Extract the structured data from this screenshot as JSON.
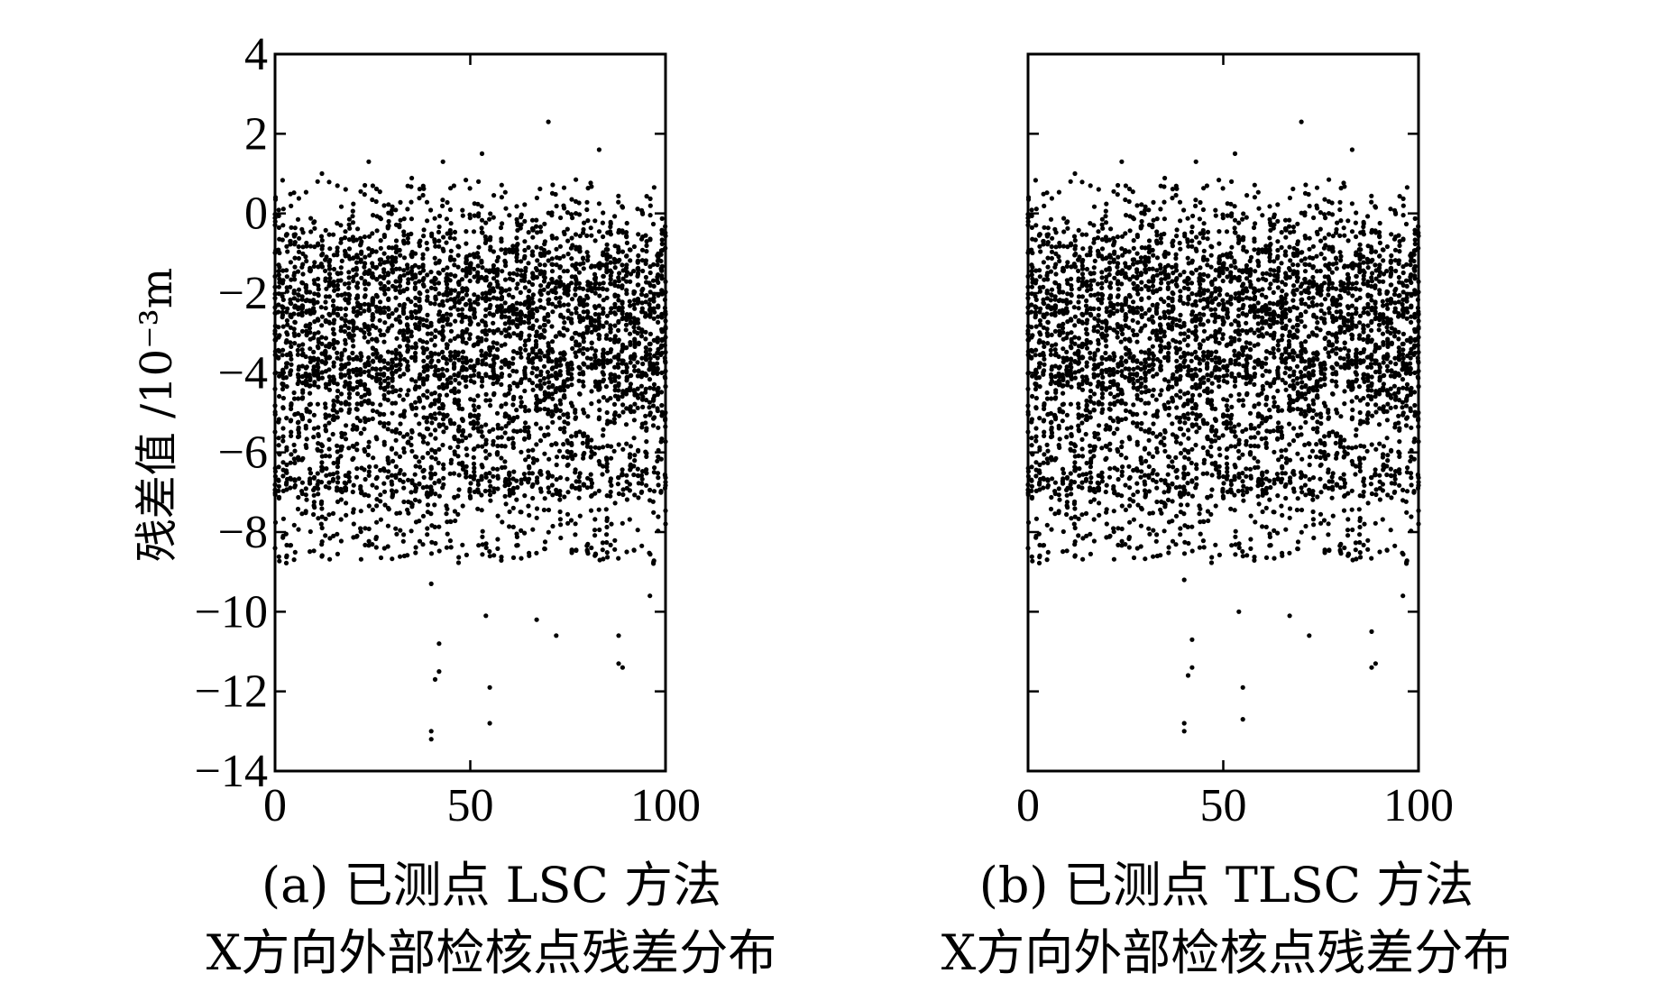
{
  "chart_data": [
    {
      "type": "scatter",
      "id": "a",
      "caption_line1": "(a) 已测点 LSC 方法",
      "caption_line2": "X方向外部检核点残差分布",
      "ylabel": "残差值 /10⁻³m",
      "xlim": [
        0,
        100
      ],
      "ylim": [
        -14,
        4
      ],
      "xticks": [
        "0",
        "50",
        "100"
      ],
      "yticks": [
        "4",
        "2",
        "0",
        "−2",
        "−4",
        "−6",
        "−8",
        "−10",
        "−12",
        "−14"
      ],
      "show_ytick_labels": true,
      "n_columns": 101,
      "points_per_column": 40,
      "seed": 7,
      "extreme_points": [
        {
          "x": 40,
          "y": -13.0
        },
        {
          "x": 40,
          "y": -13.2
        },
        {
          "x": 41,
          "y": -11.7
        },
        {
          "x": 42,
          "y": -10.8
        },
        {
          "x": 42,
          "y": -11.5
        },
        {
          "x": 40,
          "y": -9.3
        },
        {
          "x": 55,
          "y": -12.8
        },
        {
          "x": 55,
          "y": -11.9
        },
        {
          "x": 54,
          "y": -10.1
        },
        {
          "x": 88,
          "y": -11.3
        },
        {
          "x": 89,
          "y": -11.4
        },
        {
          "x": 88,
          "y": -10.6
        },
        {
          "x": 67,
          "y": -10.2
        },
        {
          "x": 72,
          "y": -10.6
        },
        {
          "x": 96,
          "y": -9.6
        },
        {
          "x": 70,
          "y": 2.3
        },
        {
          "x": 83,
          "y": 1.6
        },
        {
          "x": 53,
          "y": 1.5
        },
        {
          "x": 43,
          "y": 1.3
        },
        {
          "x": 24,
          "y": 1.3
        },
        {
          "x": 12,
          "y": 1.0
        }
      ]
    },
    {
      "type": "scatter",
      "id": "b",
      "caption_line1": "(b) 已测点 TLSC 方法",
      "caption_line2": "X方向外部检核点残差分布",
      "ylabel": "",
      "xlim": [
        0,
        100
      ],
      "ylim": [
        -14,
        4
      ],
      "xticks": [
        "0",
        "50",
        "100"
      ],
      "yticks": [],
      "show_ytick_labels": false,
      "n_columns": 101,
      "points_per_column": 40,
      "seed": 7,
      "extreme_points": [
        {
          "x": 40,
          "y": -12.8
        },
        {
          "x": 40,
          "y": -13.0
        },
        {
          "x": 41,
          "y": -11.6
        },
        {
          "x": 42,
          "y": -10.7
        },
        {
          "x": 42,
          "y": -11.4
        },
        {
          "x": 40,
          "y": -9.2
        },
        {
          "x": 55,
          "y": -12.7
        },
        {
          "x": 55,
          "y": -11.9
        },
        {
          "x": 54,
          "y": -10.0
        },
        {
          "x": 88,
          "y": -11.4
        },
        {
          "x": 89,
          "y": -11.3
        },
        {
          "x": 88,
          "y": -10.5
        },
        {
          "x": 67,
          "y": -10.1
        },
        {
          "x": 72,
          "y": -10.6
        },
        {
          "x": 96,
          "y": -9.6
        },
        {
          "x": 70,
          "y": 2.3
        },
        {
          "x": 83,
          "y": 1.6
        },
        {
          "x": 53,
          "y": 1.5
        },
        {
          "x": 43,
          "y": 1.3
        },
        {
          "x": 24,
          "y": 1.3
        },
        {
          "x": 12,
          "y": 1.0
        }
      ]
    }
  ]
}
